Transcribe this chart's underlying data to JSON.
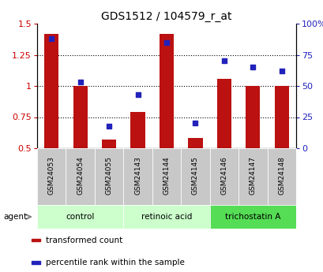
{
  "title": "GDS1512 / 104579_r_at",
  "categories": [
    "GSM24053",
    "GSM24054",
    "GSM24055",
    "GSM24143",
    "GSM24144",
    "GSM24145",
    "GSM24146",
    "GSM24147",
    "GSM24148"
  ],
  "transformed_count": [
    1.42,
    1.0,
    0.57,
    0.79,
    1.42,
    0.58,
    1.06,
    1.0,
    1.0
  ],
  "percentile_rank": [
    88,
    53,
    18,
    43,
    85,
    20,
    70,
    65,
    62
  ],
  "ylim_left": [
    0.5,
    1.5
  ],
  "ylim_right": [
    0,
    100
  ],
  "yticks_left": [
    0.5,
    0.75,
    1.0,
    1.25,
    1.5
  ],
  "ytick_labels_left": [
    "0.5",
    "0.75",
    "1",
    "1.25",
    "1.5"
  ],
  "yticks_right": [
    0,
    25,
    50,
    75,
    100
  ],
  "ytick_labels_right": [
    "0",
    "25",
    "50",
    "75",
    "100%"
  ],
  "bar_color": "#BB1111",
  "scatter_color": "#2222BB",
  "grid_color": "black",
  "bg_plot": "white",
  "bg_xtick": "#C8C8C8",
  "groups": [
    {
      "label": "control",
      "start": 0,
      "end": 3,
      "color": "#CCFFCC"
    },
    {
      "label": "retinoic acid",
      "start": 3,
      "end": 6,
      "color": "#CCFFCC"
    },
    {
      "label": "trichostatin A",
      "start": 6,
      "end": 9,
      "color": "#55DD55"
    }
  ],
  "legend_items": [
    {
      "label": "transformed count",
      "color": "#BB1111"
    },
    {
      "label": "percentile rank within the sample",
      "color": "#2222BB"
    }
  ],
  "agent_label": "agent",
  "xlabel_color_left": "#CC0000",
  "xlabel_color_right": "#2222BB",
  "title_fontsize": 10,
  "bar_width": 0.5
}
